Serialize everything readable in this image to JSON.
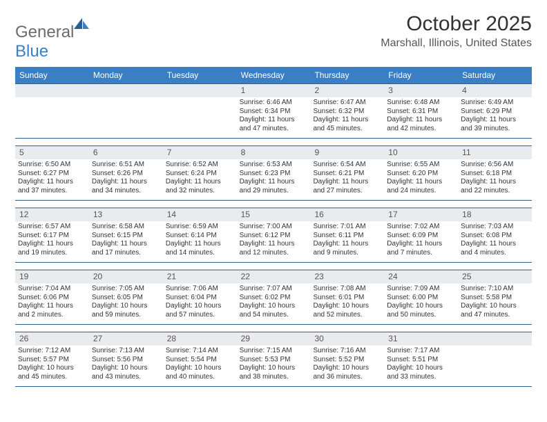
{
  "logo": {
    "text_general": "General",
    "text_blue": "Blue"
  },
  "title": "October 2025",
  "location": "Marshall, Illinois, United States",
  "colors": {
    "header_bg": "#3a7fc4",
    "header_text": "#ffffff",
    "daynum_bg": "#e9ecef",
    "border": "#2b5f92",
    "body_text": "#333333"
  },
  "weekdays": [
    "Sunday",
    "Monday",
    "Tuesday",
    "Wednesday",
    "Thursday",
    "Friday",
    "Saturday"
  ],
  "weeks": [
    [
      {
        "day": "",
        "sunrise": "",
        "sunset": "",
        "daylight": ""
      },
      {
        "day": "",
        "sunrise": "",
        "sunset": "",
        "daylight": ""
      },
      {
        "day": "",
        "sunrise": "",
        "sunset": "",
        "daylight": ""
      },
      {
        "day": "1",
        "sunrise": "Sunrise: 6:46 AM",
        "sunset": "Sunset: 6:34 PM",
        "daylight": "Daylight: 11 hours and 47 minutes."
      },
      {
        "day": "2",
        "sunrise": "Sunrise: 6:47 AM",
        "sunset": "Sunset: 6:32 PM",
        "daylight": "Daylight: 11 hours and 45 minutes."
      },
      {
        "day": "3",
        "sunrise": "Sunrise: 6:48 AM",
        "sunset": "Sunset: 6:31 PM",
        "daylight": "Daylight: 11 hours and 42 minutes."
      },
      {
        "day": "4",
        "sunrise": "Sunrise: 6:49 AM",
        "sunset": "Sunset: 6:29 PM",
        "daylight": "Daylight: 11 hours and 39 minutes."
      }
    ],
    [
      {
        "day": "5",
        "sunrise": "Sunrise: 6:50 AM",
        "sunset": "Sunset: 6:27 PM",
        "daylight": "Daylight: 11 hours and 37 minutes."
      },
      {
        "day": "6",
        "sunrise": "Sunrise: 6:51 AM",
        "sunset": "Sunset: 6:26 PM",
        "daylight": "Daylight: 11 hours and 34 minutes."
      },
      {
        "day": "7",
        "sunrise": "Sunrise: 6:52 AM",
        "sunset": "Sunset: 6:24 PM",
        "daylight": "Daylight: 11 hours and 32 minutes."
      },
      {
        "day": "8",
        "sunrise": "Sunrise: 6:53 AM",
        "sunset": "Sunset: 6:23 PM",
        "daylight": "Daylight: 11 hours and 29 minutes."
      },
      {
        "day": "9",
        "sunrise": "Sunrise: 6:54 AM",
        "sunset": "Sunset: 6:21 PM",
        "daylight": "Daylight: 11 hours and 27 minutes."
      },
      {
        "day": "10",
        "sunrise": "Sunrise: 6:55 AM",
        "sunset": "Sunset: 6:20 PM",
        "daylight": "Daylight: 11 hours and 24 minutes."
      },
      {
        "day": "11",
        "sunrise": "Sunrise: 6:56 AM",
        "sunset": "Sunset: 6:18 PM",
        "daylight": "Daylight: 11 hours and 22 minutes."
      }
    ],
    [
      {
        "day": "12",
        "sunrise": "Sunrise: 6:57 AM",
        "sunset": "Sunset: 6:17 PM",
        "daylight": "Daylight: 11 hours and 19 minutes."
      },
      {
        "day": "13",
        "sunrise": "Sunrise: 6:58 AM",
        "sunset": "Sunset: 6:15 PM",
        "daylight": "Daylight: 11 hours and 17 minutes."
      },
      {
        "day": "14",
        "sunrise": "Sunrise: 6:59 AM",
        "sunset": "Sunset: 6:14 PM",
        "daylight": "Daylight: 11 hours and 14 minutes."
      },
      {
        "day": "15",
        "sunrise": "Sunrise: 7:00 AM",
        "sunset": "Sunset: 6:12 PM",
        "daylight": "Daylight: 11 hours and 12 minutes."
      },
      {
        "day": "16",
        "sunrise": "Sunrise: 7:01 AM",
        "sunset": "Sunset: 6:11 PM",
        "daylight": "Daylight: 11 hours and 9 minutes."
      },
      {
        "day": "17",
        "sunrise": "Sunrise: 7:02 AM",
        "sunset": "Sunset: 6:09 PM",
        "daylight": "Daylight: 11 hours and 7 minutes."
      },
      {
        "day": "18",
        "sunrise": "Sunrise: 7:03 AM",
        "sunset": "Sunset: 6:08 PM",
        "daylight": "Daylight: 11 hours and 4 minutes."
      }
    ],
    [
      {
        "day": "19",
        "sunrise": "Sunrise: 7:04 AM",
        "sunset": "Sunset: 6:06 PM",
        "daylight": "Daylight: 11 hours and 2 minutes."
      },
      {
        "day": "20",
        "sunrise": "Sunrise: 7:05 AM",
        "sunset": "Sunset: 6:05 PM",
        "daylight": "Daylight: 10 hours and 59 minutes."
      },
      {
        "day": "21",
        "sunrise": "Sunrise: 7:06 AM",
        "sunset": "Sunset: 6:04 PM",
        "daylight": "Daylight: 10 hours and 57 minutes."
      },
      {
        "day": "22",
        "sunrise": "Sunrise: 7:07 AM",
        "sunset": "Sunset: 6:02 PM",
        "daylight": "Daylight: 10 hours and 54 minutes."
      },
      {
        "day": "23",
        "sunrise": "Sunrise: 7:08 AM",
        "sunset": "Sunset: 6:01 PM",
        "daylight": "Daylight: 10 hours and 52 minutes."
      },
      {
        "day": "24",
        "sunrise": "Sunrise: 7:09 AM",
        "sunset": "Sunset: 6:00 PM",
        "daylight": "Daylight: 10 hours and 50 minutes."
      },
      {
        "day": "25",
        "sunrise": "Sunrise: 7:10 AM",
        "sunset": "Sunset: 5:58 PM",
        "daylight": "Daylight: 10 hours and 47 minutes."
      }
    ],
    [
      {
        "day": "26",
        "sunrise": "Sunrise: 7:12 AM",
        "sunset": "Sunset: 5:57 PM",
        "daylight": "Daylight: 10 hours and 45 minutes."
      },
      {
        "day": "27",
        "sunrise": "Sunrise: 7:13 AM",
        "sunset": "Sunset: 5:56 PM",
        "daylight": "Daylight: 10 hours and 43 minutes."
      },
      {
        "day": "28",
        "sunrise": "Sunrise: 7:14 AM",
        "sunset": "Sunset: 5:54 PM",
        "daylight": "Daylight: 10 hours and 40 minutes."
      },
      {
        "day": "29",
        "sunrise": "Sunrise: 7:15 AM",
        "sunset": "Sunset: 5:53 PM",
        "daylight": "Daylight: 10 hours and 38 minutes."
      },
      {
        "day": "30",
        "sunrise": "Sunrise: 7:16 AM",
        "sunset": "Sunset: 5:52 PM",
        "daylight": "Daylight: 10 hours and 36 minutes."
      },
      {
        "day": "31",
        "sunrise": "Sunrise: 7:17 AM",
        "sunset": "Sunset: 5:51 PM",
        "daylight": "Daylight: 10 hours and 33 minutes."
      },
      {
        "day": "",
        "sunrise": "",
        "sunset": "",
        "daylight": ""
      }
    ]
  ]
}
